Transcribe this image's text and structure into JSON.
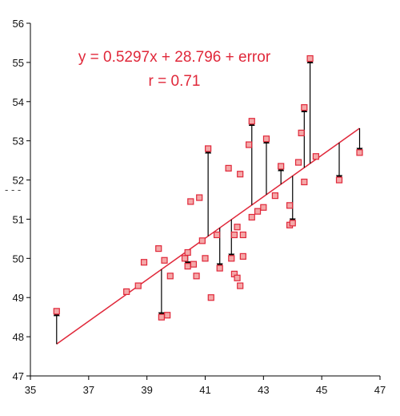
{
  "chart_data": {
    "type": "scatter",
    "title": "",
    "xlabel": "",
    "ylabel": "",
    "xlim": [
      35,
      47
    ],
    "ylim": [
      47,
      56
    ],
    "x_ticks": [
      "35",
      "37",
      "39",
      "41",
      "43",
      "45",
      "47"
    ],
    "y_ticks": [
      "47",
      "48",
      "49",
      "50",
      "51",
      "52",
      "53",
      "54",
      "55",
      "56"
    ],
    "grid": false,
    "legend": "none",
    "annotations": {
      "equation": "y = 0.5297x + 28.796 + error",
      "r": "r = 0.71"
    },
    "fit_line": {
      "slope": 0.5297,
      "intercept": 28.796,
      "x_range": [
        35.9,
        46.3
      ],
      "color": "#e0283a"
    },
    "point_color": "#e0283a",
    "point_fill": "#f4a8a8",
    "arrow_color": "#000000",
    "points": [
      [
        35.9,
        48.65
      ],
      [
        38.3,
        49.15
      ],
      [
        38.7,
        49.3
      ],
      [
        38.9,
        49.9
      ],
      [
        39.4,
        50.25
      ],
      [
        39.5,
        48.5
      ],
      [
        39.6,
        49.95
      ],
      [
        39.7,
        48.55
      ],
      [
        39.8,
        49.55
      ],
      [
        40.3,
        50.0
      ],
      [
        40.4,
        50.15
      ],
      [
        40.4,
        49.8
      ],
      [
        40.5,
        51.45
      ],
      [
        40.6,
        49.85
      ],
      [
        40.7,
        49.55
      ],
      [
        40.8,
        51.55
      ],
      [
        40.9,
        50.45
      ],
      [
        41.0,
        50.0
      ],
      [
        41.1,
        52.8
      ],
      [
        41.2,
        49.0
      ],
      [
        41.4,
        50.6
      ],
      [
        41.5,
        49.75
      ],
      [
        41.8,
        52.3
      ],
      [
        41.9,
        50.0
      ],
      [
        42.0,
        50.6
      ],
      [
        42.0,
        49.6
      ],
      [
        42.1,
        49.5
      ],
      [
        42.1,
        50.8
      ],
      [
        42.2,
        49.3
      ],
      [
        42.2,
        52.15
      ],
      [
        42.3,
        50.05
      ],
      [
        42.3,
        50.6
      ],
      [
        42.5,
        52.9
      ],
      [
        42.6,
        51.05
      ],
      [
        42.6,
        53.5
      ],
      [
        42.8,
        51.2
      ],
      [
        43.0,
        51.3
      ],
      [
        43.1,
        53.05
      ],
      [
        43.4,
        51.6
      ],
      [
        43.6,
        52.35
      ],
      [
        43.9,
        51.35
      ],
      [
        43.9,
        50.85
      ],
      [
        44.0,
        50.9
      ],
      [
        44.2,
        52.45
      ],
      [
        44.3,
        53.2
      ],
      [
        44.4,
        51.95
      ],
      [
        44.4,
        53.85
      ],
      [
        44.6,
        55.1
      ],
      [
        44.8,
        52.6
      ],
      [
        45.6,
        52.0
      ],
      [
        46.3,
        52.7
      ]
    ],
    "residual_x": [
      35.9,
      39.5,
      40.4,
      41.1,
      41.9,
      42.6,
      43.1,
      44.0,
      44.6,
      45.6,
      46.3,
      41.5,
      43.6,
      44.4
    ],
    "left_marker": "- - -"
  }
}
